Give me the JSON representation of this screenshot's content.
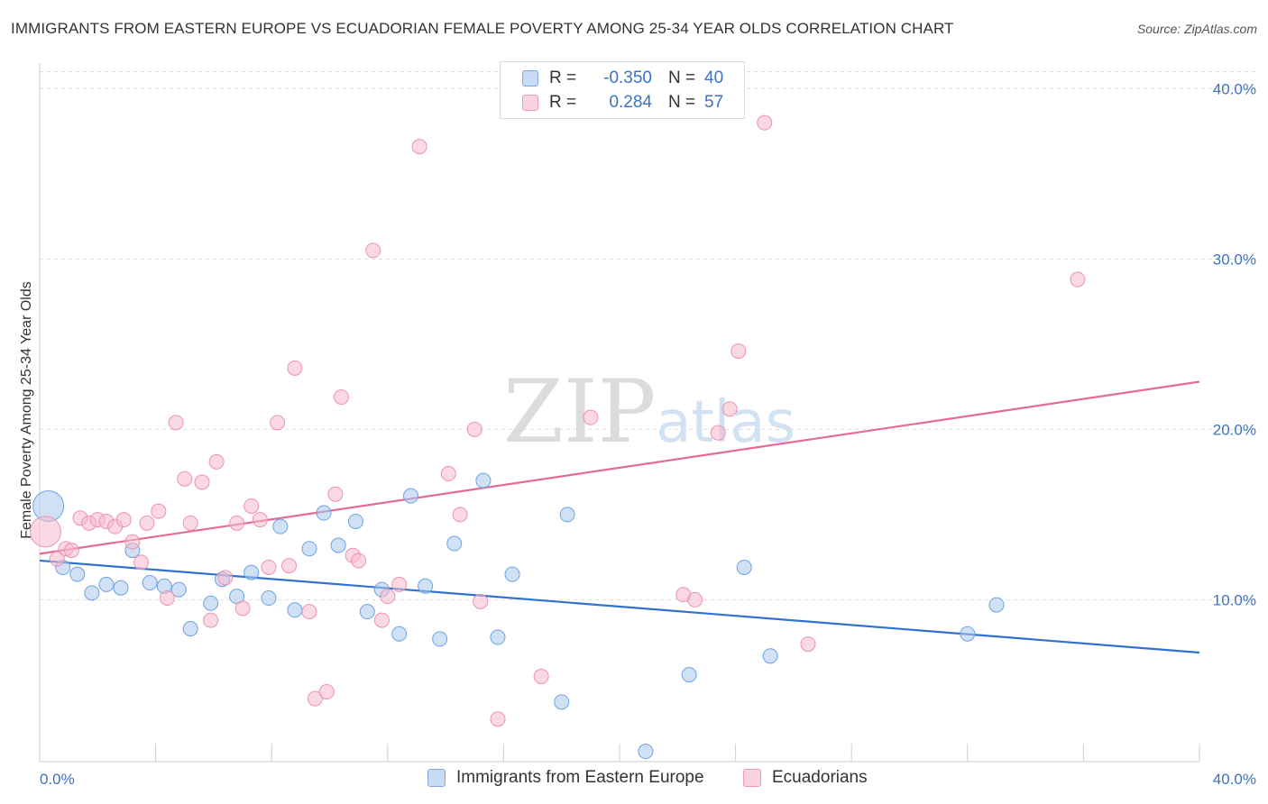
{
  "title": "IMMIGRANTS FROM EASTERN EUROPE VS ECUADORIAN FEMALE POVERTY AMONG 25-34 YEAR OLDS CORRELATION CHART",
  "source": "Source: ZipAtlas.com",
  "watermark": "ZIPatlas",
  "legend": {
    "rows": [
      {
        "r_label": "R =",
        "r_value": "-0.350",
        "n_label": "N =",
        "n_value": "40",
        "color": "#a9c8ef"
      },
      {
        "r_label": "R =",
        "r_value": "0.284",
        "n_label": "N =",
        "n_value": "57",
        "color": "#f6b9cc"
      }
    ]
  },
  "bottom_legend": [
    {
      "label": "Immigrants from Eastern Europe",
      "color": "#a9c8ef"
    },
    {
      "label": "Ecuadorians",
      "color": "#f6b9cc"
    }
  ],
  "chart_data": {
    "type": "scatter",
    "title": "IMMIGRANTS FROM EASTERN EUROPE VS ECUADORIAN FEMALE POVERTY AMONG 25-34 YEAR OLDS CORRELATION CHART",
    "xlabel": "",
    "ylabel": "Female Poverty Among 25-34 Year Olds",
    "xlim": [
      0,
      40
    ],
    "ylim": [
      0.5,
      41.5
    ],
    "x_tick_labels": [
      "0.0%",
      "40.0%"
    ],
    "y_ticks": [
      10,
      20,
      30,
      40
    ],
    "y_tick_labels": [
      "10.0%",
      "20.0%",
      "30.0%",
      "40.0%"
    ],
    "grid": true,
    "series": [
      {
        "name": "Immigrants from Eastern Europe",
        "color": "#6fa2de",
        "fill": "#a9c8ef",
        "trend": {
          "x": [
            0,
            40
          ],
          "y": [
            12.3,
            6.9
          ],
          "color": "#2f72d0"
        },
        "points": [
          {
            "x": 0.3,
            "y": 15.5,
            "big": true
          },
          {
            "x": 0.8,
            "y": 11.9
          },
          {
            "x": 1.3,
            "y": 11.5
          },
          {
            "x": 1.8,
            "y": 10.4
          },
          {
            "x": 2.3,
            "y": 10.9
          },
          {
            "x": 2.8,
            "y": 10.7
          },
          {
            "x": 3.2,
            "y": 12.9
          },
          {
            "x": 3.8,
            "y": 11.0
          },
          {
            "x": 4.3,
            "y": 10.8
          },
          {
            "x": 4.8,
            "y": 10.6
          },
          {
            "x": 5.2,
            "y": 8.3
          },
          {
            "x": 5.9,
            "y": 9.8
          },
          {
            "x": 6.3,
            "y": 11.2
          },
          {
            "x": 6.8,
            "y": 10.2
          },
          {
            "x": 7.3,
            "y": 11.6
          },
          {
            "x": 7.9,
            "y": 10.1
          },
          {
            "x": 8.3,
            "y": 14.3
          },
          {
            "x": 8.8,
            "y": 9.4
          },
          {
            "x": 9.3,
            "y": 13.0
          },
          {
            "x": 9.8,
            "y": 15.1
          },
          {
            "x": 10.3,
            "y": 13.2
          },
          {
            "x": 10.9,
            "y": 14.6
          },
          {
            "x": 11.3,
            "y": 9.3
          },
          {
            "x": 11.8,
            "y": 10.6
          },
          {
            "x": 12.4,
            "y": 8.0
          },
          {
            "x": 12.8,
            "y": 16.1
          },
          {
            "x": 13.3,
            "y": 10.8
          },
          {
            "x": 13.8,
            "y": 7.7
          },
          {
            "x": 14.3,
            "y": 13.3
          },
          {
            "x": 15.3,
            "y": 17.0
          },
          {
            "x": 15.8,
            "y": 7.8
          },
          {
            "x": 16.3,
            "y": 11.5
          },
          {
            "x": 18.0,
            "y": 4.0
          },
          {
            "x": 18.2,
            "y": 15.0
          },
          {
            "x": 20.9,
            "y": 1.1
          },
          {
            "x": 22.4,
            "y": 5.6
          },
          {
            "x": 24.3,
            "y": 11.9
          },
          {
            "x": 25.2,
            "y": 6.7
          },
          {
            "x": 32.0,
            "y": 8.0
          },
          {
            "x": 33.0,
            "y": 9.7
          }
        ]
      },
      {
        "name": "Ecuadorians",
        "color": "#ee92ae",
        "fill": "#f6b9cc",
        "trend": {
          "x": [
            0,
            40
          ],
          "y": [
            12.7,
            22.8
          ],
          "color": "#e56b96"
        },
        "points": [
          {
            "x": 0.2,
            "y": 14.0,
            "big": true
          },
          {
            "x": 0.6,
            "y": 12.4
          },
          {
            "x": 0.9,
            "y": 13.0
          },
          {
            "x": 1.1,
            "y": 12.9
          },
          {
            "x": 1.4,
            "y": 14.8
          },
          {
            "x": 1.7,
            "y": 14.5
          },
          {
            "x": 2.0,
            "y": 14.7
          },
          {
            "x": 2.3,
            "y": 14.6
          },
          {
            "x": 2.6,
            "y": 14.3
          },
          {
            "x": 2.9,
            "y": 14.7
          },
          {
            "x": 3.2,
            "y": 13.4
          },
          {
            "x": 3.5,
            "y": 12.2
          },
          {
            "x": 3.7,
            "y": 14.5
          },
          {
            "x": 4.1,
            "y": 15.2
          },
          {
            "x": 4.4,
            "y": 10.1
          },
          {
            "x": 4.7,
            "y": 20.4
          },
          {
            "x": 5.0,
            "y": 17.1
          },
          {
            "x": 5.2,
            "y": 14.5
          },
          {
            "x": 5.6,
            "y": 16.9
          },
          {
            "x": 5.9,
            "y": 8.8
          },
          {
            "x": 6.1,
            "y": 18.1
          },
          {
            "x": 6.4,
            "y": 11.3
          },
          {
            "x": 6.8,
            "y": 14.5
          },
          {
            "x": 7.0,
            "y": 9.5
          },
          {
            "x": 7.3,
            "y": 15.5
          },
          {
            "x": 7.6,
            "y": 14.7
          },
          {
            "x": 7.9,
            "y": 11.9
          },
          {
            "x": 8.2,
            "y": 20.4
          },
          {
            "x": 8.6,
            "y": 12.0
          },
          {
            "x": 8.8,
            "y": 23.6
          },
          {
            "x": 9.3,
            "y": 9.3
          },
          {
            "x": 9.5,
            "y": 4.2
          },
          {
            "x": 9.9,
            "y": 4.6
          },
          {
            "x": 10.2,
            "y": 16.2
          },
          {
            "x": 10.4,
            "y": 21.9
          },
          {
            "x": 10.8,
            "y": 12.6
          },
          {
            "x": 11.0,
            "y": 12.3
          },
          {
            "x": 11.5,
            "y": 30.5
          },
          {
            "x": 11.8,
            "y": 8.8
          },
          {
            "x": 12.0,
            "y": 10.2
          },
          {
            "x": 12.4,
            "y": 10.9
          },
          {
            "x": 13.1,
            "y": 36.6
          },
          {
            "x": 14.1,
            "y": 17.4
          },
          {
            "x": 14.5,
            "y": 15.0
          },
          {
            "x": 15.0,
            "y": 20.0
          },
          {
            "x": 15.2,
            "y": 9.9
          },
          {
            "x": 15.8,
            "y": 3.0
          },
          {
            "x": 17.3,
            "y": 5.5
          },
          {
            "x": 19.0,
            "y": 20.7
          },
          {
            "x": 22.2,
            "y": 10.3
          },
          {
            "x": 22.6,
            "y": 10.0
          },
          {
            "x": 23.4,
            "y": 19.8
          },
          {
            "x": 23.8,
            "y": 21.2
          },
          {
            "x": 24.1,
            "y": 24.6
          },
          {
            "x": 25.0,
            "y": 38.0
          },
          {
            "x": 26.5,
            "y": 7.4
          },
          {
            "x": 35.8,
            "y": 28.8
          }
        ]
      }
    ]
  }
}
